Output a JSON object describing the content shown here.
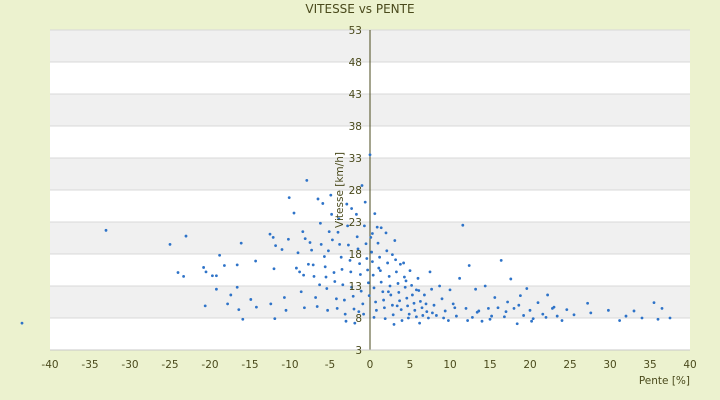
{
  "chart_data": {
    "type": "scatter",
    "title": "VITESSE vs PENTE",
    "xlabel": "Pente [%]",
    "ylabel": "Vitesse [km/h]",
    "xlim": [
      -40,
      40
    ],
    "ylim": [
      3,
      53
    ],
    "x_ticks": [
      "-40",
      "-35",
      "-30",
      "-25",
      "-20",
      "-15",
      "-10",
      "-5",
      "0",
      "5",
      "10",
      "15",
      "20",
      "25",
      "30",
      "35",
      "40"
    ],
    "y_ticks": [
      "3",
      "8",
      "13",
      "18",
      "23",
      "28",
      "33",
      "38",
      "43",
      "48",
      "53"
    ],
    "grid": true,
    "legend": "none",
    "marker_color": "#2e73c8",
    "band_color": "#f0f0f0",
    "axis_color": "#4a4a1c",
    "series": [
      {
        "points": [
          [
            -43.5,
            7.2
          ],
          [
            -33,
            21.7
          ],
          [
            -23,
            20.8
          ],
          [
            -25,
            19.5
          ],
          [
            -24,
            15.1
          ],
          [
            -23.3,
            14.5
          ],
          [
            -20.8,
            15.9
          ],
          [
            -20.5,
            15.2
          ],
          [
            -19.7,
            14.6
          ],
          [
            -19.2,
            14.6
          ],
          [
            -18.8,
            17.8
          ],
          [
            -18.2,
            16.2
          ],
          [
            -17.8,
            10.2
          ],
          [
            -17.4,
            11.6
          ],
          [
            -16.6,
            12.8
          ],
          [
            -16.4,
            9.3
          ],
          [
            -16.1,
            19.7
          ],
          [
            -15.9,
            7.8
          ],
          [
            -14.9,
            10.9
          ],
          [
            -14.3,
            16.9
          ],
          [
            -14.2,
            9.7
          ],
          [
            -20.6,
            9.9
          ],
          [
            -19.2,
            12.5
          ],
          [
            -16.6,
            16.3
          ],
          [
            -12.5,
            21.1
          ],
          [
            -12.1,
            20.6
          ],
          [
            -11.8,
            19.3
          ],
          [
            -12.4,
            10.2
          ],
          [
            -12,
            15.7
          ],
          [
            -11.9,
            7.9
          ],
          [
            -11,
            18.7
          ],
          [
            -10.7,
            11.2
          ],
          [
            -10.5,
            9.2
          ],
          [
            -10.2,
            20.3
          ],
          [
            -10.1,
            26.8
          ],
          [
            -9.5,
            24.4
          ],
          [
            -9.2,
            15.8
          ],
          [
            -8.8,
            15.2
          ],
          [
            -8.4,
            21.5
          ],
          [
            -8.3,
            14.7
          ],
          [
            -8.2,
            9.6
          ],
          [
            -8.1,
            20.4
          ],
          [
            -7.9,
            29.5
          ],
          [
            -7.5,
            19.8
          ],
          [
            -7.3,
            18.6
          ],
          [
            -7.1,
            16.3
          ],
          [
            -7.0,
            14.5
          ],
          [
            -6.8,
            11.2
          ],
          [
            -6.6,
            9.8
          ],
          [
            -6.2,
            22.8
          ],
          [
            -6.1,
            19.5
          ],
          [
            -5.9,
            25.9
          ],
          [
            -5.7,
            17.6
          ],
          [
            -5.6,
            16.0
          ],
          [
            -5.5,
            14.4
          ],
          [
            -5.4,
            12.6
          ],
          [
            -5.2,
            18.5
          ],
          [
            -5.1,
            21.5
          ],
          [
            -4.9,
            27.2
          ],
          [
            -4.8,
            24.2
          ],
          [
            -4.7,
            20.2
          ],
          [
            -4.5,
            15.1
          ],
          [
            -4.4,
            13.7
          ],
          [
            -4.2,
            11.0
          ],
          [
            -4.1,
            9.5
          ],
          [
            -3.9,
            23.5
          ],
          [
            -3.8,
            19.5
          ],
          [
            -3.6,
            17.5
          ],
          [
            -3.5,
            15.6
          ],
          [
            -3.4,
            13.2
          ],
          [
            -3.2,
            10.8
          ],
          [
            -3.1,
            8.6
          ],
          [
            -2.9,
            25.8
          ],
          [
            -2.8,
            22.4
          ],
          [
            -2.7,
            19.4
          ],
          [
            -2.5,
            17.0
          ],
          [
            -2.4,
            15.2
          ],
          [
            -2.3,
            12.8
          ],
          [
            -2.1,
            11.4
          ],
          [
            -2.0,
            9.4
          ],
          [
            -1.9,
            7.2
          ],
          [
            -1.7,
            24.2
          ],
          [
            -1.6,
            20.7
          ],
          [
            -1.5,
            18.8
          ],
          [
            -1.3,
            16.5
          ],
          [
            -1.2,
            14.8
          ],
          [
            -1.1,
            12.2
          ],
          [
            -0.9,
            10.2
          ],
          [
            -0.8,
            8.6
          ],
          [
            -0.7,
            22.4
          ],
          [
            -0.5,
            19.6
          ],
          [
            -0.4,
            17.3
          ],
          [
            -0.3,
            15.5
          ],
          [
            -0.2,
            13.5
          ],
          [
            -0.1,
            11.5
          ],
          [
            0.0,
            33.5
          ],
          [
            0.1,
            20.6
          ],
          [
            0.2,
            18.3
          ],
          [
            0.3,
            16.8
          ],
          [
            0.4,
            14.7
          ],
          [
            0.5,
            12.7
          ],
          [
            0.7,
            10.5
          ],
          [
            0.8,
            9.2
          ],
          [
            0.9,
            22.2
          ],
          [
            1.0,
            19.7
          ],
          [
            1.2,
            17.5
          ],
          [
            1.3,
            15.4
          ],
          [
            1.4,
            13.6
          ],
          [
            1.6,
            12.1
          ],
          [
            1.7,
            10.8
          ],
          [
            1.8,
            9.6
          ],
          [
            2.0,
            21.3
          ],
          [
            2.1,
            18.5
          ],
          [
            2.2,
            16.6
          ],
          [
            2.4,
            14.5
          ],
          [
            2.5,
            13.0
          ],
          [
            2.6,
            11.6
          ],
          [
            2.8,
            10.0
          ],
          [
            2.9,
            8.5
          ],
          [
            3.1,
            20.1
          ],
          [
            3.2,
            17.1
          ],
          [
            3.3,
            15.2
          ],
          [
            3.5,
            13.4
          ],
          [
            3.6,
            12.0
          ],
          [
            3.7,
            10.7
          ],
          [
            3.9,
            9.3
          ],
          [
            4.0,
            7.6
          ],
          [
            4.2,
            16.6
          ],
          [
            4.3,
            14.4
          ],
          [
            4.4,
            12.8
          ],
          [
            4.6,
            11.1
          ],
          [
            4.7,
            9.9
          ],
          [
            4.9,
            8.6
          ],
          [
            5.0,
            15.4
          ],
          [
            5.2,
            13.1
          ],
          [
            5.3,
            11.6
          ],
          [
            5.5,
            10.3
          ],
          [
            5.6,
            9.2
          ],
          [
            5.8,
            8.2
          ],
          [
            6.0,
            14.2
          ],
          [
            6.1,
            12.3
          ],
          [
            6.3,
            10.6
          ],
          [
            6.5,
            9.6
          ],
          [
            6.6,
            8.4
          ],
          [
            6.8,
            11.6
          ],
          [
            7.0,
            10.2
          ],
          [
            7.1,
            9.0
          ],
          [
            7.3,
            8.0
          ],
          [
            7.5,
            15.2
          ],
          [
            7.7,
            12.5
          ],
          [
            8.0,
            10.0
          ],
          [
            8.3,
            8.4
          ],
          [
            8.7,
            13.0
          ],
          [
            9.0,
            11.0
          ],
          [
            9.4,
            9.1
          ],
          [
            9.8,
            7.6
          ],
          [
            10.0,
            12.4
          ],
          [
            10.4,
            10.2
          ],
          [
            10.8,
            8.3
          ],
          [
            11.2,
            14.2
          ],
          [
            11.6,
            22.5
          ],
          [
            12.0,
            9.5
          ],
          [
            12.4,
            16.2
          ],
          [
            12.8,
            8.1
          ],
          [
            13.2,
            12.5
          ],
          [
            13.6,
            9.1
          ],
          [
            14.0,
            7.5
          ],
          [
            14.4,
            13.0
          ],
          [
            14.8,
            9.5
          ],
          [
            15.2,
            8.3
          ],
          [
            15.6,
            11.2
          ],
          [
            16.0,
            9.6
          ],
          [
            16.4,
            17.0
          ],
          [
            16.8,
            8.2
          ],
          [
            17.2,
            10.5
          ],
          [
            17.6,
            14.1
          ],
          [
            18.0,
            9.5
          ],
          [
            18.4,
            7.1
          ],
          [
            18.8,
            11.5
          ],
          [
            19.2,
            8.4
          ],
          [
            19.6,
            12.6
          ],
          [
            20.0,
            9.2
          ],
          [
            20.4,
            7.9
          ],
          [
            21.0,
            10.4
          ],
          [
            21.6,
            8.6
          ],
          [
            22.2,
            11.6
          ],
          [
            22.8,
            9.5
          ],
          [
            23.4,
            8.3
          ],
          [
            24.0,
            7.6
          ],
          [
            24.6,
            9.3
          ],
          [
            27.2,
            10.3
          ],
          [
            27.6,
            8.8
          ],
          [
            29.8,
            9.2
          ],
          [
            31.2,
            7.6
          ],
          [
            32.0,
            8.3
          ],
          [
            33.0,
            9.1
          ],
          [
            34.0,
            8.0
          ],
          [
            35.5,
            10.4
          ],
          [
            36.0,
            7.8
          ],
          [
            36.5,
            9.5
          ],
          [
            37.5,
            8.0
          ],
          [
            -2.3,
            25.1
          ],
          [
            -1.0,
            28.7
          ],
          [
            0.6,
            24.3
          ],
          [
            1.4,
            22.1
          ],
          [
            2.8,
            17.9
          ],
          [
            3.8,
            16.4
          ],
          [
            4.5,
            13.8
          ],
          [
            5.8,
            12.4
          ],
          [
            -6.5,
            26.6
          ],
          [
            -4.0,
            21.4
          ],
          [
            -0.6,
            26.1
          ],
          [
            0.3,
            21.2
          ],
          [
            1.1,
            15.8
          ],
          [
            2.3,
            12.1
          ],
          [
            3.4,
            9.9
          ],
          [
            -9.0,
            18.2
          ],
          [
            -8.6,
            12.1
          ],
          [
            -7.7,
            16.4
          ],
          [
            -6.3,
            13.2
          ],
          [
            -5.3,
            9.2
          ],
          [
            -3.0,
            7.5
          ],
          [
            -1.4,
            9.0
          ],
          [
            0.5,
            8.1
          ],
          [
            1.9,
            7.9
          ],
          [
            3.0,
            7.0
          ],
          [
            4.8,
            8.0
          ],
          [
            6.2,
            7.2
          ],
          [
            7.8,
            8.8
          ],
          [
            9.2,
            8.0
          ],
          [
            10.6,
            9.6
          ],
          [
            12.2,
            7.6
          ],
          [
            13.4,
            8.9
          ],
          [
            15.0,
            7.8
          ],
          [
            17.0,
            9.0
          ],
          [
            18.6,
            10.0
          ],
          [
            20.2,
            7.5
          ],
          [
            22.0,
            8.1
          ],
          [
            23.0,
            9.7
          ],
          [
            25.5,
            8.5
          ]
        ]
      }
    ]
  }
}
